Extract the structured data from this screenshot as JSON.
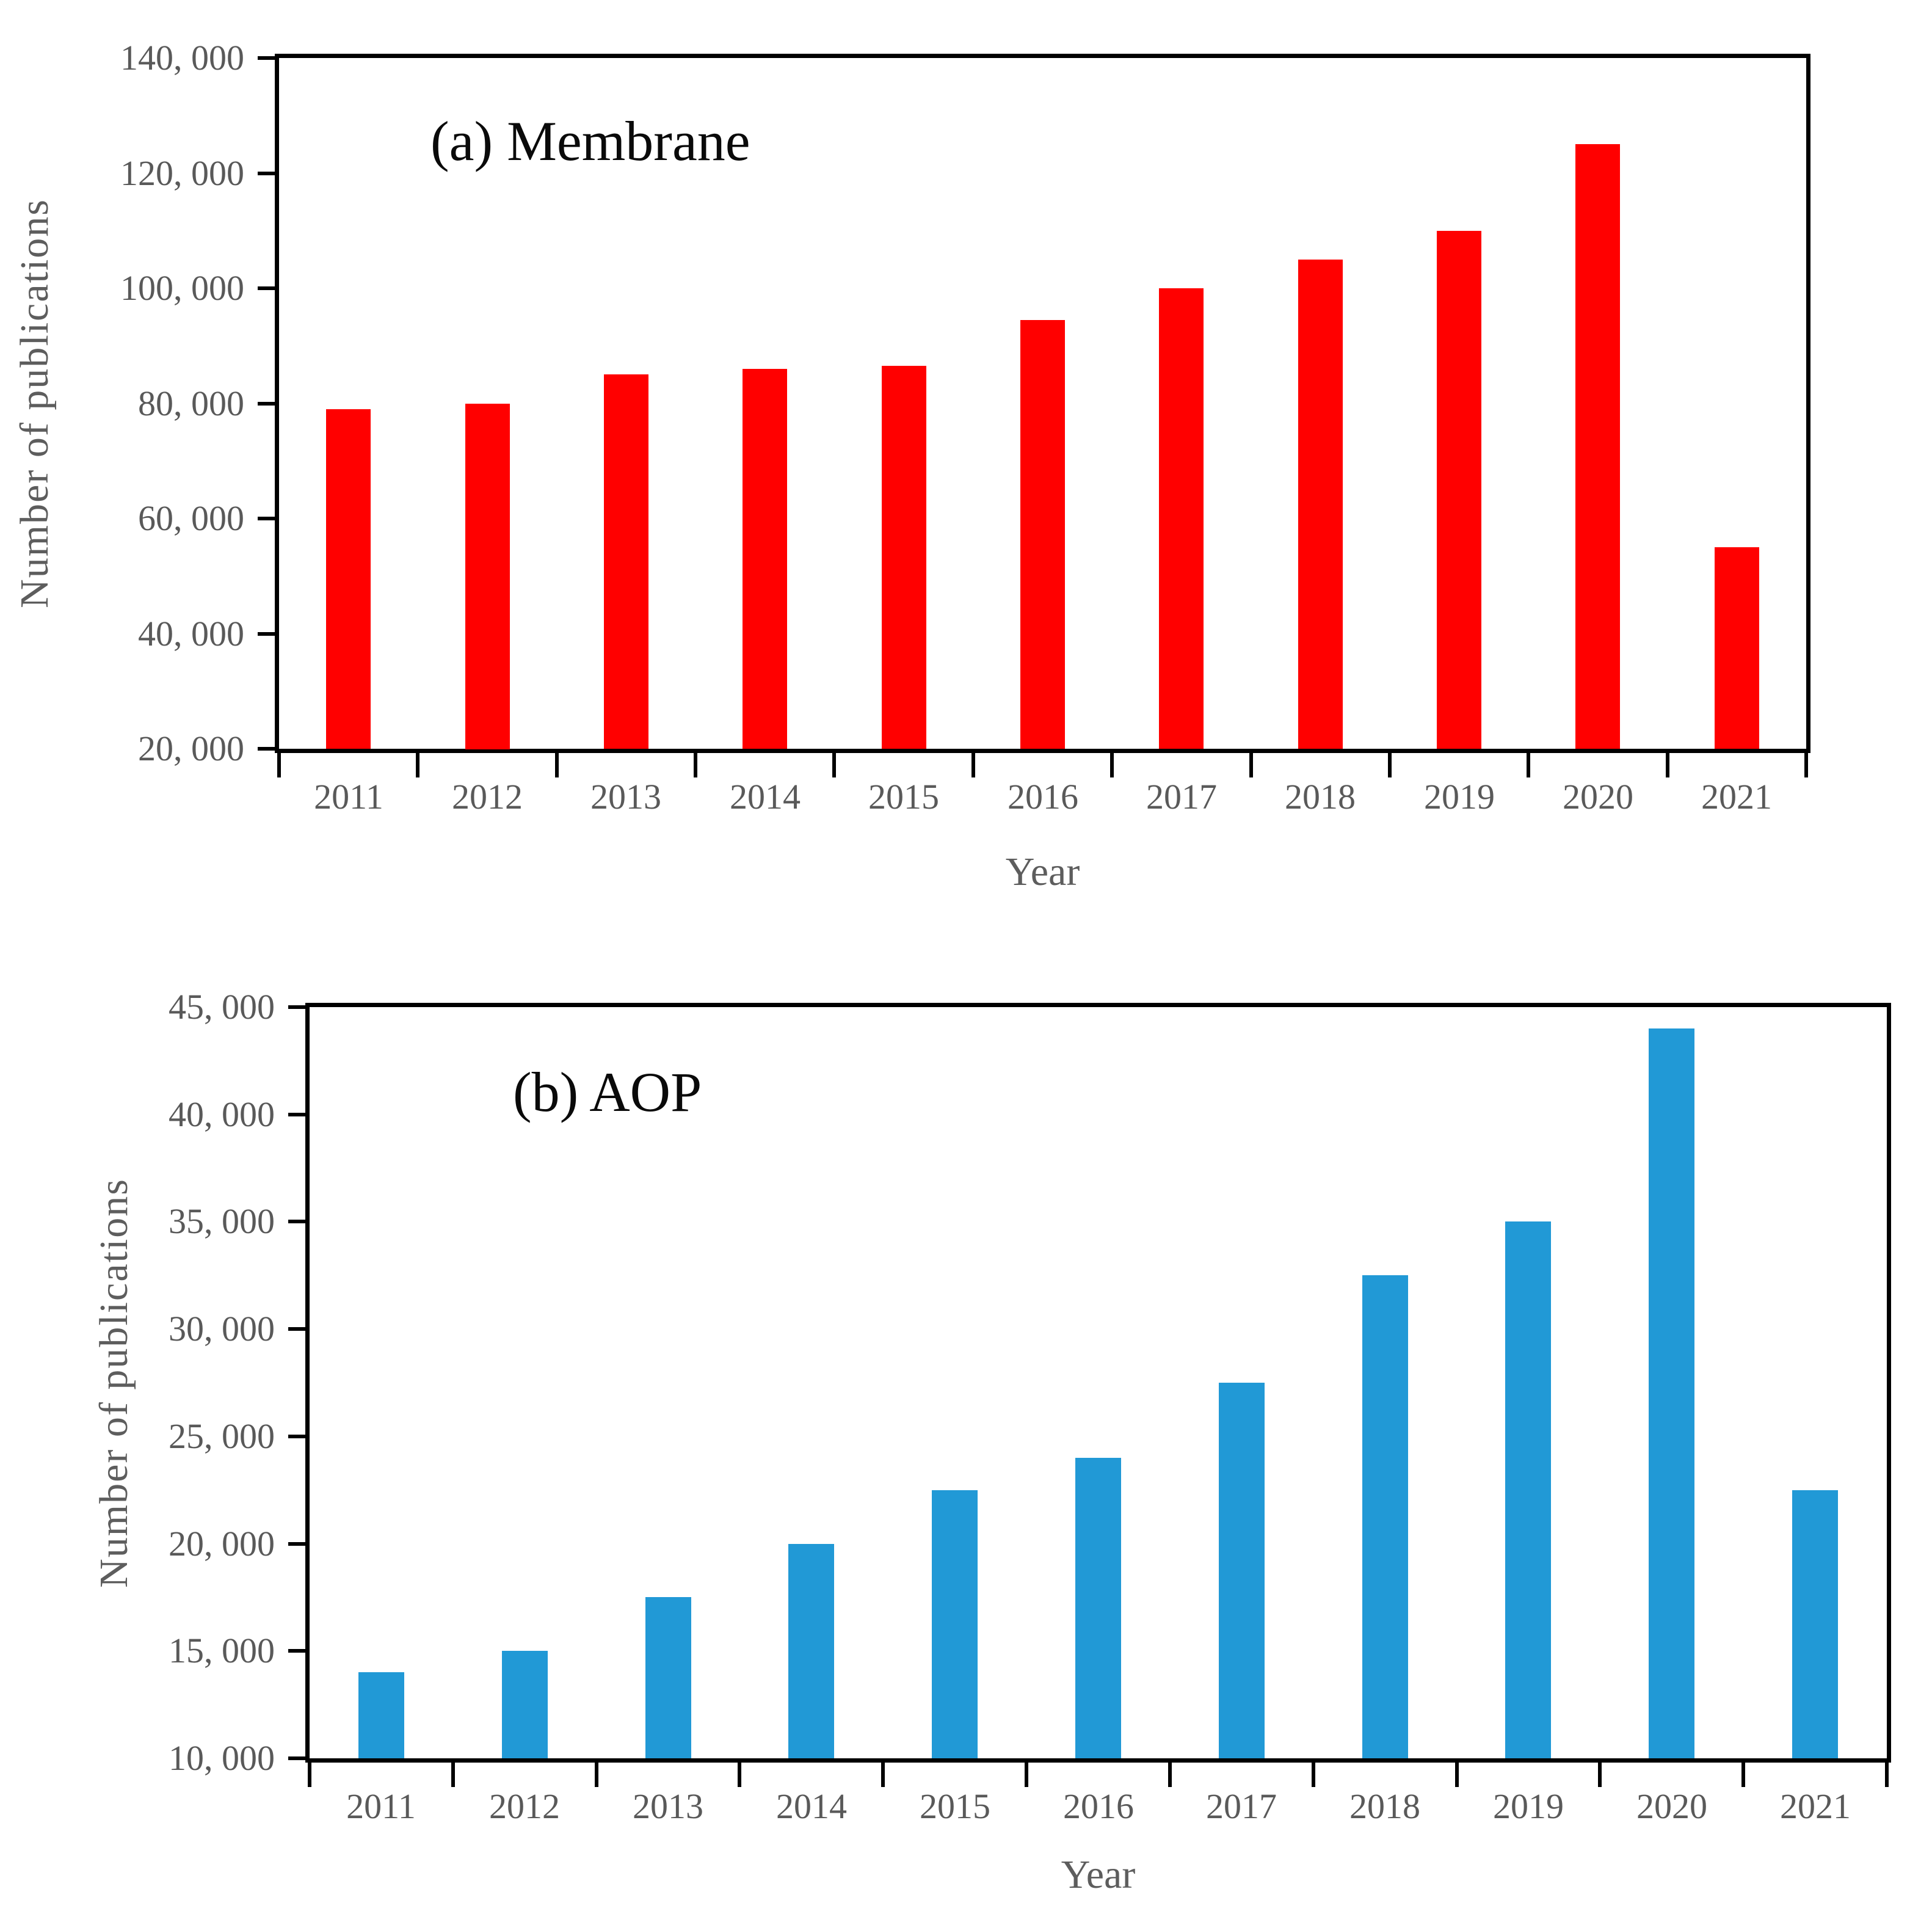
{
  "chart_data": [
    {
      "type": "bar",
      "panel": "a",
      "title": "(a) Membrane",
      "xlabel": "Year",
      "ylabel": "Number of publications",
      "categories": [
        "2011",
        "2012",
        "2013",
        "2014",
        "2015",
        "2016",
        "2017",
        "2018",
        "2019",
        "2020",
        "2021"
      ],
      "values": [
        79000,
        80000,
        85000,
        86000,
        86500,
        94500,
        100000,
        105000,
        110000,
        125000,
        55000
      ],
      "bar_color": "#FF0000",
      "ylim": [
        20000,
        140000
      ],
      "ytick_values": [
        20000,
        40000,
        60000,
        80000,
        100000,
        120000,
        140000
      ],
      "ytick_labels": [
        "20, 000",
        "40, 000",
        "60, 000",
        "80, 000",
        "100, 000",
        "120, 000",
        "140, 000"
      ],
      "grid": false,
      "legend": false
    },
    {
      "type": "bar",
      "panel": "b",
      "title": "(b) AOP",
      "xlabel": "Year",
      "ylabel": "Number of publications",
      "categories": [
        "2011",
        "2012",
        "2013",
        "2014",
        "2015",
        "2016",
        "2017",
        "2018",
        "2019",
        "2020",
        "2021"
      ],
      "values": [
        14000,
        15000,
        17500,
        20000,
        22500,
        24000,
        27500,
        32500,
        35000,
        44000,
        22500
      ],
      "bar_color": "#2199D6",
      "ylim": [
        10000,
        45000
      ],
      "ytick_values": [
        10000,
        15000,
        20000,
        25000,
        30000,
        35000,
        40000,
        45000
      ],
      "ytick_labels": [
        "10, 000",
        "15, 000",
        "20, 000",
        "25, 000",
        "30, 000",
        "35, 000",
        "40, 000",
        "45, 000"
      ],
      "grid": false,
      "legend": false
    }
  ]
}
